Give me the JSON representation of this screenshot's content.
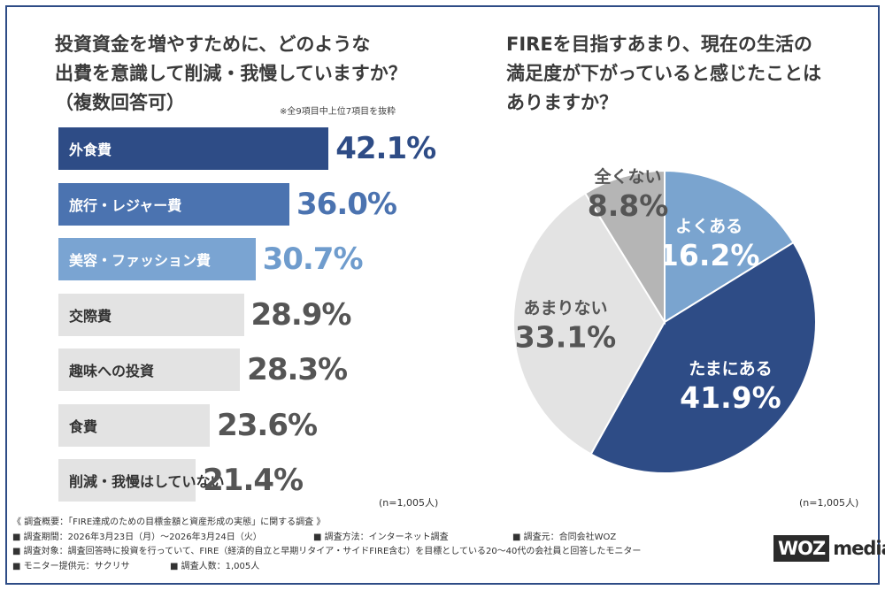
{
  "bar_chart": {
    "title_lines": [
      "投資資金を増やすために、どのような",
      "出費を意識して削減・我慢していますか？",
      "（複数回答可）"
    ],
    "note": "※全9項目中上位7項目を抜粋",
    "n_label": "(n=1,005人)"
  },
  "pie_chart": {
    "title_lines": [
      "FIREを目指すあまり、現在の生活の",
      "満足度が下がっていると感じたことは",
      "ありますか？"
    ],
    "n_label": "(n=1,005人)"
  },
  "chart_data": [
    {
      "type": "bar",
      "orientation": "horizontal",
      "categories": [
        "外食費",
        "旅行・レジャー費",
        "美容・ファッション費",
        "交際費",
        "趣味への投資",
        "食費",
        "削減・我慢はしていない"
      ],
      "values": [
        42.1,
        36.0,
        30.7,
        28.9,
        28.3,
        23.6,
        21.4
      ],
      "value_labels": [
        "42.1%",
        "36.0%",
        "30.7%",
        "28.9%",
        "28.3%",
        "23.6%",
        "21.4%"
      ],
      "colors": [
        "#2e4c86",
        "#4b73b0",
        "#7aa4d2",
        "#e3e3e3",
        "#e3e3e3",
        "#e3e3e3",
        "#e3e3e3"
      ],
      "label_colors": [
        "#ffffff",
        "#ffffff",
        "#ffffff",
        "#333333",
        "#333333",
        "#333333",
        "#333333"
      ],
      "value_colors": [
        "#2e4c86",
        "#4b73b0",
        "#6f9ccd",
        "#555555",
        "#555555",
        "#555555",
        "#555555"
      ]
    },
    {
      "type": "pie",
      "categories": [
        "よくある",
        "たまにある",
        "あまりない",
        "全くない"
      ],
      "values": [
        16.2,
        41.9,
        33.1,
        8.8
      ],
      "value_labels": [
        "16.2%",
        "41.9%",
        "33.1%",
        "8.8%"
      ],
      "colors": [
        "#7aa4cf",
        "#2e4c86",
        "#e3e3e3",
        "#b5b5b5"
      ],
      "text_colors": [
        "#ffffff",
        "#ffffff",
        "#555555",
        "#555555"
      ]
    }
  ],
  "footer": {
    "line1": "《 調査概要：「FIRE達成のための目標金額と資産形成の実態」に関する調査 》",
    "period": "■ 調査期間：2026年3月23日（月）〜2026年3月24日（火）",
    "method": "■ 調査方法：インターネット調査",
    "source": "■ 調査元：合同会社WOZ",
    "target": "■ 調査対象：調査回答時に投資を行っていて、FIRE（経済的自立と早期リタイア・サイドFIRE含む）を目標としている20〜40代の会社員と回答したモニター",
    "provider": "■ モニター提供元：サクリサ",
    "count": "■ 調査人数：1,005人"
  },
  "logo": {
    "woz": "WOZ",
    "media": "media"
  }
}
